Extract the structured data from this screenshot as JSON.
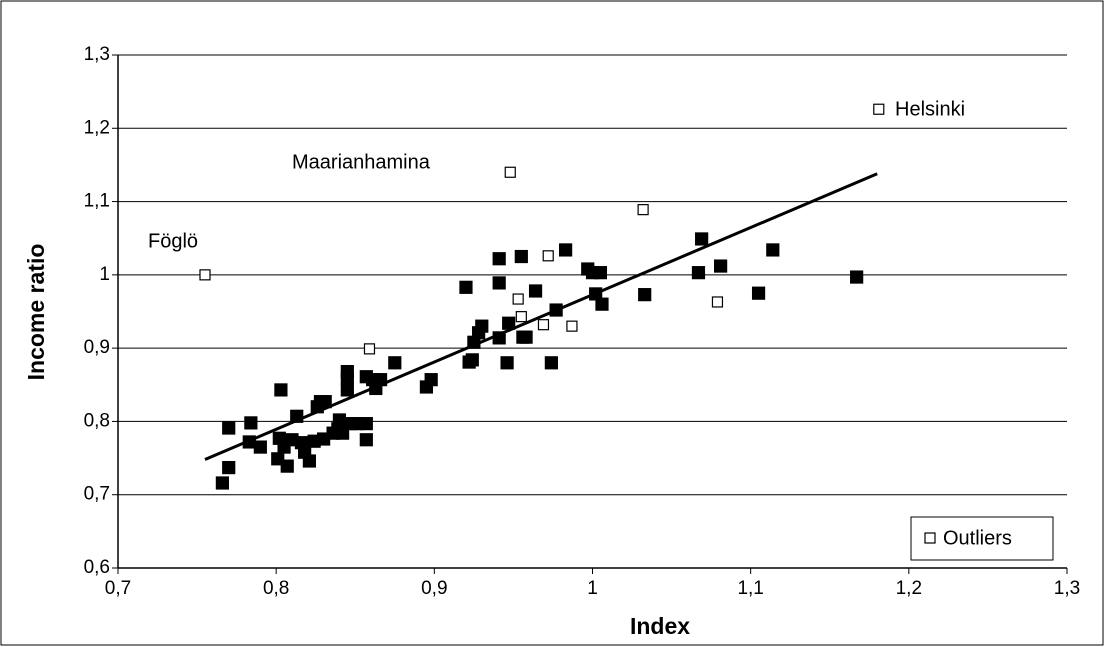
{
  "chart_data": {
    "type": "scatter",
    "x_label": "Index",
    "y_label": "Income ratio",
    "xlim": [
      0.7,
      1.3
    ],
    "ylim": [
      0.6,
      1.3
    ],
    "xticks": [
      {
        "value": 0.7,
        "label": "0,7"
      },
      {
        "value": 0.8,
        "label": "0,8"
      },
      {
        "value": 0.9,
        "label": "0,9"
      },
      1,
      {
        "value": 1.1,
        "label": "1,1"
      },
      {
        "value": 1.2,
        "label": "1,2"
      },
      {
        "value": 1.3,
        "label": "1,3"
      }
    ],
    "yticks": [
      {
        "value": 0.6,
        "label": "0,6"
      },
      {
        "value": 0.7,
        "label": "0,7"
      },
      {
        "value": 0.8,
        "label": "0,8"
      },
      {
        "value": 0.9,
        "label": "0,9"
      },
      1,
      {
        "value": 1.1,
        "label": "1,1"
      },
      {
        "value": 1.2,
        "label": "1,2"
      },
      {
        "value": 1.3,
        "label": "1,3"
      }
    ],
    "grid": true,
    "legend": "bottom-right",
    "series": [
      {
        "color": "#000000",
        "fill": "#000000",
        "x": [
          0.766,
          0.77,
          0.77,
          0.784,
          0.783,
          0.79,
          0.803,
          0.802,
          0.801,
          0.805,
          0.807,
          0.81,
          0.813,
          0.816,
          0.818,
          0.821,
          0.824,
          0.826,
          0.828,
          0.83,
          0.831,
          0.836,
          0.839,
          0.84,
          0.842,
          0.845,
          0.845,
          0.845,
          0.847,
          0.851,
          0.857,
          0.857,
          0.857,
          0.861,
          0.863,
          0.866,
          0.875,
          0.895,
          0.898,
          0.92,
          0.922,
          0.924,
          0.925,
          0.928,
          0.93,
          0.941,
          0.941,
          0.941,
          0.946,
          0.947,
          0.955,
          0.956,
          0.958,
          0.964,
          0.974,
          0.977,
          0.983,
          0.997,
          1.0,
          1.002,
          1.005,
          1.006,
          1.033,
          1.067,
          1.069,
          1.081,
          1.105,
          1.114,
          1.167
        ],
        "values": [
          0.716,
          0.737,
          0.791,
          0.798,
          0.772,
          0.765,
          0.843,
          0.777,
          0.749,
          0.765,
          0.739,
          0.775,
          0.807,
          0.771,
          0.758,
          0.746,
          0.773,
          0.82,
          0.827,
          0.776,
          0.827,
          0.784,
          0.79,
          0.802,
          0.784,
          0.843,
          0.868,
          0.859,
          0.797,
          0.797,
          0.797,
          0.775,
          0.861,
          0.857,
          0.845,
          0.857,
          0.88,
          0.847,
          0.857,
          0.983,
          0.881,
          0.884,
          0.908,
          0.921,
          0.93,
          1.022,
          0.989,
          0.914,
          0.88,
          0.934,
          1.025,
          0.915,
          0.915,
          0.978,
          0.88,
          0.952,
          1.034,
          1.008,
          1.003,
          0.974,
          1.003,
          0.96,
          0.973,
          1.003,
          1.049,
          1.012,
          0.975,
          1.034,
          0.997
        ]
      },
      {
        "name": "Outliers",
        "color": "#000000",
        "fill": "#ffffff",
        "x": [
          0.755,
          0.948,
          1.181,
          1.032,
          0.972,
          0.953,
          0.955,
          0.969,
          0.987,
          0.859,
          1.079
        ],
        "values": [
          1.0,
          1.14,
          1.226,
          1.089,
          1.026,
          0.967,
          0.943,
          0.932,
          0.93,
          0.899,
          0.963
        ]
      }
    ],
    "trendline": {
      "color": "#000000",
      "x": [
        0.755,
        1.18
      ],
      "y": [
        0.748,
        1.138
      ]
    },
    "annotations": [
      "Föglö",
      "Maarianhamina",
      "Helsinki"
    ]
  }
}
